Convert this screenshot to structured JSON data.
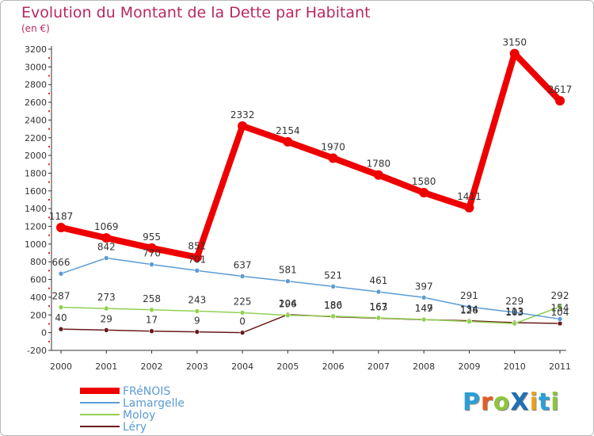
{
  "title": "Evolution du Montant de la Dette par Habitant",
  "subtitle": "(en €)",
  "brand": {
    "text": "ProXiti",
    "letters": [
      {
        "ch": "P",
        "color": "#2aa0d8"
      },
      {
        "ch": "r",
        "color": "#e95a1f"
      },
      {
        "ch": "o",
        "color": "#8cc63f"
      },
      {
        "ch": "X",
        "color": "#1f6fb5"
      },
      {
        "ch": "i",
        "color": "#e9a21f"
      },
      {
        "ch": "t",
        "color": "#2aa0d8"
      },
      {
        "ch": "i",
        "color": "#8cc63f"
      }
    ]
  },
  "chart_data": {
    "type": "line",
    "x": [
      "2000",
      "2001",
      "2002",
      "2003",
      "2004",
      "2005",
      "2006",
      "2007",
      "2008",
      "2009",
      "2010",
      "2011"
    ],
    "ylim": [
      -200,
      3200
    ],
    "yticks": [
      -200,
      0,
      200,
      400,
      600,
      800,
      1000,
      1200,
      1400,
      1600,
      1800,
      2000,
      2200,
      2400,
      2600,
      2800,
      3000,
      3200
    ],
    "grid": false,
    "legend_position": "bottom-left",
    "series": [
      {
        "name": "FRéNOIS",
        "color": "#ef0000",
        "values": [
          1187,
          1069,
          955,
          851,
          2332,
          2154,
          1970,
          1780,
          1580,
          1411,
          3150,
          2617
        ]
      },
      {
        "name": "Lamargelle",
        "color": "#5b9bd5",
        "values": [
          666,
          842,
          770,
          701,
          637,
          581,
          521,
          461,
          397,
          291,
          229,
          154
        ]
      },
      {
        "name": "Moloy",
        "color": "#92d050",
        "values": [
          287,
          273,
          258,
          243,
          225,
          196,
          186,
          167,
          149,
          126,
          103,
          292
        ]
      },
      {
        "name": "Léry",
        "color": "#6b1a1a",
        "values": [
          40,
          29,
          17,
          9,
          0,
          204,
          180,
          163,
          147,
          134,
          113,
          104
        ]
      }
    ]
  }
}
